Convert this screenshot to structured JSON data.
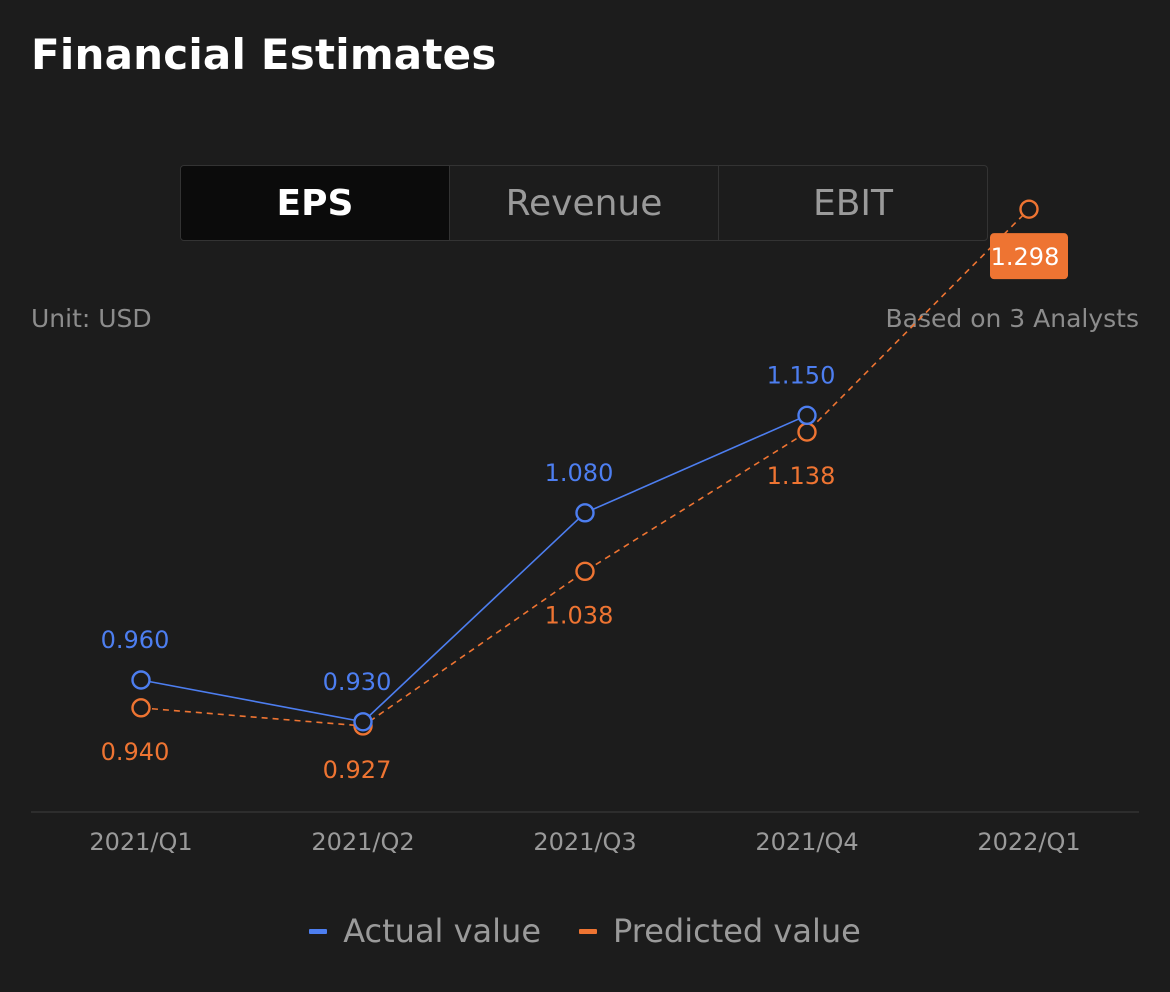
{
  "title": "Financial Estimates",
  "tabs": [
    {
      "label": "EPS",
      "active": true
    },
    {
      "label": "Revenue",
      "active": false
    },
    {
      "label": "EBIT",
      "active": false
    }
  ],
  "unit_label": "Unit: USD",
  "analysts_label": "Based on 3 Analysts",
  "colors": {
    "actual": "#4d7ef0",
    "predicted": "#ee7432",
    "axis": "#333333",
    "tick_text": "#9a9a9a"
  },
  "chart_data": {
    "type": "line",
    "categories": [
      "2021/Q1",
      "2021/Q2",
      "2021/Q3",
      "2021/Q4",
      "2022/Q1"
    ],
    "series": [
      {
        "name": "Actual value",
        "values": [
          0.96,
          0.93,
          1.08,
          1.15,
          null
        ],
        "labels": [
          "0.960",
          "0.930",
          "1.080",
          "1.150",
          ""
        ]
      },
      {
        "name": "Predicted value",
        "values": [
          0.94,
          0.927,
          1.038,
          1.138,
          1.298
        ],
        "labels": [
          "0.940",
          "0.927",
          "1.038",
          "1.138",
          "1.298"
        ]
      }
    ],
    "highlighted_point": {
      "series": 1,
      "index": 4
    },
    "legend_position": "bottom"
  }
}
